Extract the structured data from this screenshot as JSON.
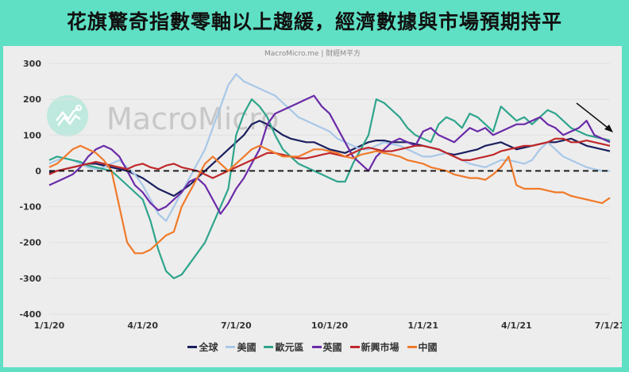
{
  "title": "花旗驚奇指數零軸以上趨緩，經濟數據與市場預期持平",
  "source": "MacroMicro.me | 財經M平方",
  "watermark": "MacroMicro",
  "colors": {
    "frame": "#5fe0c4",
    "panel": "#ededed"
  },
  "chart_data": {
    "type": "line",
    "title": "花旗驚奇指數零軸以上趨緩，經濟數據與市場預期持平",
    "xlabel": "",
    "ylabel": "",
    "ylim": [
      -400,
      300
    ],
    "yticks": [
      300,
      200,
      100,
      0,
      -100,
      -200,
      -300,
      -400
    ],
    "xticks": [
      "1/1/20",
      "4/1/20",
      "7/1/20",
      "10/1/20",
      "1/1/21",
      "4/1/21",
      "7/1/21"
    ],
    "grid": true,
    "legend_position": "bottom",
    "reference_line": {
      "y": 0,
      "style": "dashed",
      "color": "#111111"
    },
    "annotation": "downward arrow near end of series",
    "x": [
      0,
      0.25,
      0.5,
      0.75,
      1,
      1.25,
      1.5,
      1.75,
      2,
      2.25,
      2.5,
      2.75,
      3,
      3.25,
      3.5,
      3.75,
      4,
      4.25,
      4.5,
      4.75,
      5,
      5.25,
      5.5,
      5.75,
      6,
      6.25,
      6.5,
      6.75,
      7,
      7.25,
      7.5,
      7.75,
      8,
      8.25,
      8.5,
      8.75,
      9,
      9.25,
      9.5,
      9.75,
      10,
      10.25,
      10.5,
      10.75,
      11,
      11.25,
      11.5,
      11.75,
      12,
      12.25,
      12.5,
      12.75,
      13,
      13.25,
      13.5,
      13.75,
      14,
      14.25,
      14.5,
      14.75,
      15,
      15.25,
      15.5,
      15.75,
      16,
      16.25,
      16.5,
      16.75,
      17,
      17.25,
      17.5,
      17.75,
      18
    ],
    "x_unit": "months since 1/1/20",
    "series": [
      {
        "name": "全球",
        "color": "#1b1f5e",
        "values": [
          -5,
          0,
          5,
          10,
          15,
          20,
          20,
          15,
          10,
          5,
          0,
          -10,
          -20,
          -35,
          -50,
          -60,
          -70,
          -55,
          -40,
          -20,
          0,
          20,
          40,
          60,
          80,
          100,
          130,
          140,
          130,
          115,
          100,
          90,
          85,
          80,
          80,
          70,
          60,
          55,
          50,
          60,
          70,
          80,
          85,
          85,
          80,
          80,
          80,
          75,
          70,
          65,
          60,
          50,
          45,
          50,
          55,
          60,
          70,
          75,
          80,
          70,
          60,
          65,
          70,
          75,
          80,
          80,
          85,
          90,
          80,
          70,
          65,
          60,
          55
        ]
      },
      {
        "name": "美國",
        "color": "#a8c8e8",
        "values": [
          20,
          30,
          35,
          30,
          20,
          10,
          5,
          10,
          20,
          30,
          10,
          -10,
          -40,
          -80,
          -120,
          -140,
          -100,
          -60,
          -20,
          20,
          60,
          120,
          180,
          240,
          270,
          250,
          240,
          230,
          220,
          210,
          190,
          170,
          150,
          140,
          130,
          120,
          110,
          90,
          80,
          70,
          60,
          60,
          70,
          80,
          75,
          70,
          60,
          50,
          40,
          40,
          45,
          50,
          40,
          30,
          20,
          15,
          10,
          20,
          30,
          30,
          25,
          20,
          30,
          60,
          80,
          60,
          40,
          30,
          20,
          10,
          5,
          0,
          0
        ]
      },
      {
        "name": "歐元區",
        "color": "#2fa58c",
        "values": [
          30,
          40,
          35,
          30,
          25,
          15,
          10,
          5,
          0,
          -20,
          -40,
          -60,
          -80,
          -140,
          -220,
          -280,
          -300,
          -290,
          -260,
          -230,
          -200,
          -150,
          -100,
          -50,
          100,
          160,
          200,
          180,
          150,
          100,
          60,
          40,
          20,
          10,
          0,
          -10,
          -20,
          -30,
          -30,
          20,
          60,
          100,
          200,
          190,
          170,
          150,
          120,
          100,
          90,
          80,
          130,
          150,
          140,
          120,
          160,
          150,
          130,
          110,
          180,
          160,
          140,
          150,
          130,
          150,
          170,
          160,
          140,
          120,
          110,
          100,
          95,
          90,
          85
        ]
      },
      {
        "name": "英國",
        "color": "#6a2aa8",
        "values": [
          -40,
          -30,
          -20,
          -10,
          10,
          40,
          60,
          70,
          60,
          40,
          0,
          -40,
          -60,
          -90,
          -110,
          -100,
          -80,
          -60,
          -30,
          -20,
          -40,
          -80,
          -120,
          -90,
          -50,
          -20,
          20,
          60,
          130,
          160,
          170,
          180,
          190,
          200,
          210,
          180,
          160,
          120,
          80,
          40,
          20,
          0,
          40,
          60,
          80,
          90,
          80,
          70,
          110,
          120,
          100,
          90,
          80,
          100,
          120,
          110,
          120,
          100,
          110,
          120,
          130,
          130,
          140,
          150,
          130,
          120,
          100,
          110,
          120,
          140,
          100,
          90,
          80
        ]
      },
      {
        "name": "新興市場",
        "color": "#c0282a",
        "values": [
          -10,
          0,
          5,
          10,
          15,
          20,
          25,
          20,
          15,
          10,
          5,
          15,
          20,
          10,
          5,
          15,
          20,
          10,
          5,
          0,
          -10,
          -20,
          -10,
          0,
          10,
          20,
          30,
          40,
          50,
          50,
          45,
          40,
          35,
          35,
          40,
          45,
          50,
          45,
          40,
          50,
          60,
          65,
          60,
          55,
          55,
          60,
          65,
          70,
          70,
          65,
          60,
          50,
          40,
          30,
          30,
          35,
          40,
          45,
          55,
          60,
          65,
          70,
          70,
          75,
          80,
          90,
          90,
          80,
          80,
          85,
          80,
          75,
          70
        ]
      },
      {
        "name": "中國",
        "color": "#f07a2a",
        "values": [
          10,
          20,
          40,
          60,
          70,
          60,
          50,
          30,
          0,
          -100,
          -200,
          -230,
          -230,
          -220,
          -200,
          -180,
          -170,
          -100,
          -60,
          -20,
          20,
          40,
          20,
          0,
          20,
          40,
          60,
          70,
          60,
          50,
          40,
          40,
          40,
          50,
          60,
          60,
          55,
          50,
          40,
          35,
          45,
          50,
          55,
          50,
          45,
          40,
          30,
          25,
          20,
          10,
          5,
          0,
          -10,
          -15,
          -20,
          -20,
          -25,
          -10,
          10,
          40,
          -40,
          -50,
          -50,
          -50,
          -55,
          -60,
          -60,
          -70,
          -75,
          -80,
          -85,
          -90,
          -75
        ]
      }
    ]
  }
}
